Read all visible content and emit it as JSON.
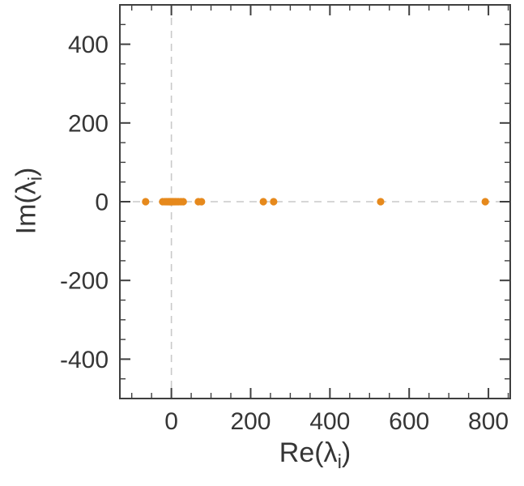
{
  "chart_data": {
    "type": "scatter",
    "title": "",
    "xlabel_pre": "Re(λ",
    "xlabel_sub": "i",
    "xlabel_post": ")",
    "ylabel_pre": "Im(λ",
    "ylabel_sub": "i",
    "ylabel_post": ")",
    "xlim": [
      -130,
      855
    ],
    "ylim": [
      -500,
      500
    ],
    "x_major_ticks": [
      0,
      200,
      400,
      600,
      800
    ],
    "y_major_ticks": [
      -400,
      -200,
      0,
      200,
      400
    ],
    "x_minor_step": 50,
    "y_minor_step": 50,
    "grid": "off",
    "legend": "none",
    "reference_lines": {
      "vertical_x": 0,
      "horizontal_y": 0
    },
    "point_color": "#e6891c",
    "frame_color": "#3f3f3f",
    "label_color": "#363636",
    "dash_color": "#c9c9c9",
    "points": [
      [
        -65,
        0
      ],
      [
        -22,
        0
      ],
      [
        -16,
        0
      ],
      [
        -12,
        0
      ],
      [
        -9,
        0
      ],
      [
        -6,
        0
      ],
      [
        -4,
        0
      ],
      [
        -2,
        0
      ],
      [
        0,
        0
      ],
      [
        2,
        0
      ],
      [
        4,
        0
      ],
      [
        7,
        0
      ],
      [
        10,
        0
      ],
      [
        14,
        0
      ],
      [
        18,
        0
      ],
      [
        24,
        0
      ],
      [
        30,
        0
      ],
      [
        68,
        0
      ],
      [
        76,
        0
      ],
      [
        232,
        0
      ],
      [
        258,
        0
      ],
      [
        528,
        0
      ],
      [
        792,
        0
      ]
    ]
  }
}
